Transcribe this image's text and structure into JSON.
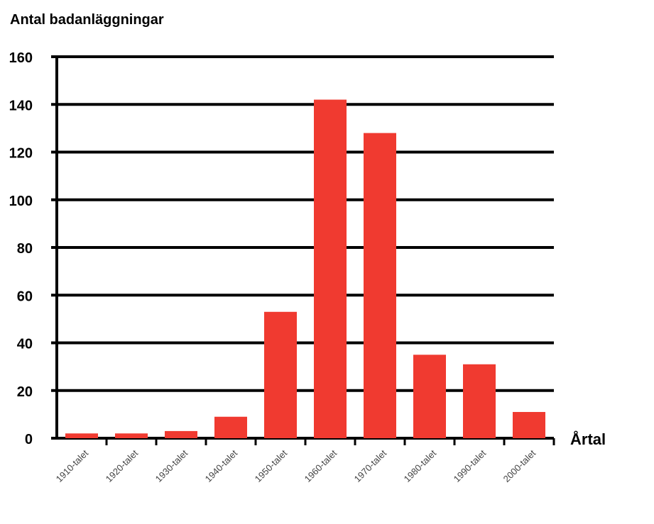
{
  "chart_data": {
    "type": "bar",
    "ylabel": "Antal badanläggningar",
    "xlabel": "Årtal",
    "categories": [
      "1910-talet",
      "1920-talet",
      "1930-talet",
      "1940-talet",
      "1950-talet",
      "1960-talet",
      "1970-talet",
      "1980-talet",
      "1990-talet",
      "2000-talet"
    ],
    "values": [
      2,
      2,
      3,
      9,
      53,
      142,
      128,
      35,
      31,
      11
    ],
    "ylim": [
      0,
      160
    ],
    "yticks": [
      0,
      20,
      40,
      60,
      80,
      100,
      120,
      140,
      160
    ],
    "grid": true,
    "bar_color": "#f03a30"
  }
}
